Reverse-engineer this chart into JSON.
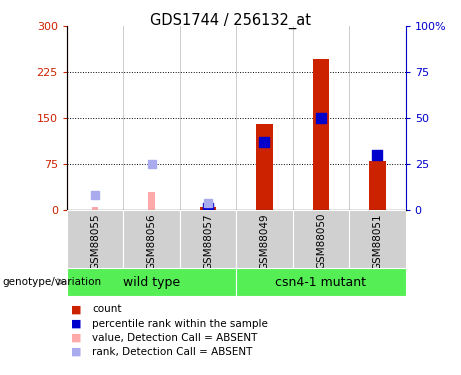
{
  "title": "GDS1744 / 256132_at",
  "samples": [
    "GSM88055",
    "GSM88056",
    "GSM88057",
    "GSM88049",
    "GSM88050",
    "GSM88051"
  ],
  "count_values": [
    null,
    null,
    5,
    140,
    247,
    80
  ],
  "rank_values_pct": [
    null,
    null,
    1,
    37,
    50,
    30
  ],
  "absent_value_values": [
    5,
    30,
    null,
    null,
    null,
    null
  ],
  "absent_rank_values_pct": [
    8,
    25,
    4,
    null,
    null,
    null
  ],
  "left_ylim": [
    0,
    300
  ],
  "right_ylim": [
    0,
    100
  ],
  "left_yticks": [
    0,
    75,
    150,
    225,
    300
  ],
  "right_yticks": [
    0,
    25,
    50,
    75,
    100
  ],
  "left_yticklabels": [
    "0",
    "75",
    "150",
    "225",
    "300"
  ],
  "right_yticklabels": [
    "0",
    "25",
    "50",
    "75",
    "100%"
  ],
  "left_axis_color": "#cc2200",
  "right_axis_color": "#0000cc",
  "bar_color": "#cc2200",
  "rank_dot_color": "#0000cc",
  "absent_value_color": "#ffaaaa",
  "absent_rank_color": "#aaaaee",
  "bar_width": 0.3,
  "absent_bar_width": 0.12,
  "dot_size": 50,
  "absent_dot_size": 35,
  "green_color": "#55ee55",
  "gray_color": "#d0d0d0",
  "legend_items": [
    {
      "color": "#cc2200",
      "label": "count"
    },
    {
      "color": "#0000cc",
      "label": "percentile rank within the sample"
    },
    {
      "color": "#ffaaaa",
      "label": "value, Detection Call = ABSENT"
    },
    {
      "color": "#aaaaee",
      "label": "rank, Detection Call = ABSENT"
    }
  ]
}
